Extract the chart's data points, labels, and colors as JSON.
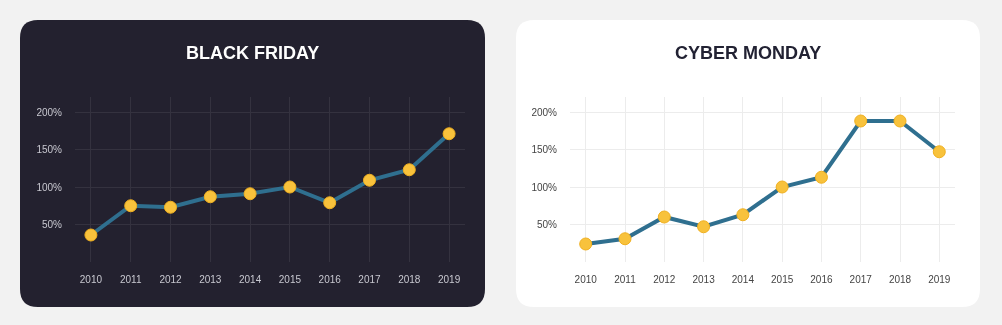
{
  "chart_data": [
    {
      "type": "line",
      "title": "BLACK FRIDAY",
      "categories": [
        "2010",
        "2011",
        "2012",
        "2013",
        "2014",
        "2015",
        "2016",
        "2017",
        "2018",
        "2019"
      ],
      "series": [
        {
          "color": "#2f6f8f",
          "values": [
            36,
            75,
            73,
            87,
            91,
            100,
            79,
            109,
            123,
            171
          ]
        }
      ],
      "ylim": [
        0,
        220
      ],
      "yticks": [
        {
          "value": 50,
          "label": "50%"
        },
        {
          "value": 100,
          "label": "100%"
        },
        {
          "value": 150,
          "label": "150%"
        },
        {
          "value": 200,
          "label": "200%"
        }
      ],
      "grid": true,
      "marker": "circle",
      "line_style": "solid"
    },
    {
      "type": "line",
      "title": "CYBER MONDAY",
      "categories": [
        "2010",
        "2011",
        "2012",
        "2013",
        "2014",
        "2015",
        "2016",
        "2017",
        "2018",
        "2019"
      ],
      "series": [
        {
          "color": "#2f6f8f",
          "values": [
            24,
            31,
            60,
            47,
            63,
            100,
            113,
            188,
            188,
            147
          ]
        }
      ],
      "ylim": [
        0,
        220
      ],
      "yticks": [
        {
          "value": 50,
          "label": "50%"
        },
        {
          "value": 100,
          "label": "100%"
        },
        {
          "value": 150,
          "label": "150%"
        },
        {
          "value": 200,
          "label": "200%"
        }
      ],
      "grid": true,
      "marker": "circle",
      "line_style": "solid"
    }
  ]
}
